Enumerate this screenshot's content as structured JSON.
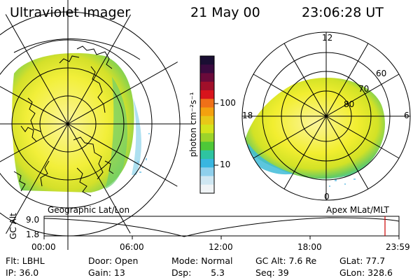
{
  "header": {
    "title": "Ultraviolet Imager",
    "date": "21 May 00",
    "time": "23:06:28 UT"
  },
  "left_map": {
    "caption": "Geographic Lat/Lon"
  },
  "right_map": {
    "caption": "Apex MLat/MLT",
    "mlt_labels": {
      "top": "12",
      "left": "18",
      "right": "6",
      "bottom": "0"
    },
    "lat_labels": [
      "60",
      "70",
      "80"
    ]
  },
  "colorbar": {
    "unit_label": "photon cm⁻²s⁻¹",
    "ticks": [
      "100",
      "10"
    ],
    "colors_top_to_bottom": [
      "#1a0e33",
      "#3a0a3f",
      "#6a0a3a",
      "#a10f2a",
      "#d8141c",
      "#f07018",
      "#f4a10f",
      "#e8c818",
      "#d4e41c",
      "#9cd42a",
      "#4ec838",
      "#2ec4a0",
      "#39b6e0",
      "#8fd0ec",
      "#cfe7f2",
      "#f0f4f6"
    ]
  },
  "orbit_plot": {
    "ylabel": "GC Alt",
    "ymax": "9.0",
    "ymin": "1.8",
    "xticks": [
      "00:00",
      "06:00",
      "12:00",
      "18:00",
      "23:59"
    ],
    "current_time_marker_color": "#cc0000"
  },
  "info": {
    "flt": "Flt: LBHL",
    "door": "Door: Open",
    "mode": "Mode: Normal",
    "gcalt": "GC Alt: 7.6 Re",
    "glat": "GLat:  77.7",
    "ip": "IP: 36.0",
    "gain": "Gain: 13",
    "dsp": "Dsp:       5.3",
    "seq": "Seq: 39",
    "glon": "GLon: 328.6"
  }
}
